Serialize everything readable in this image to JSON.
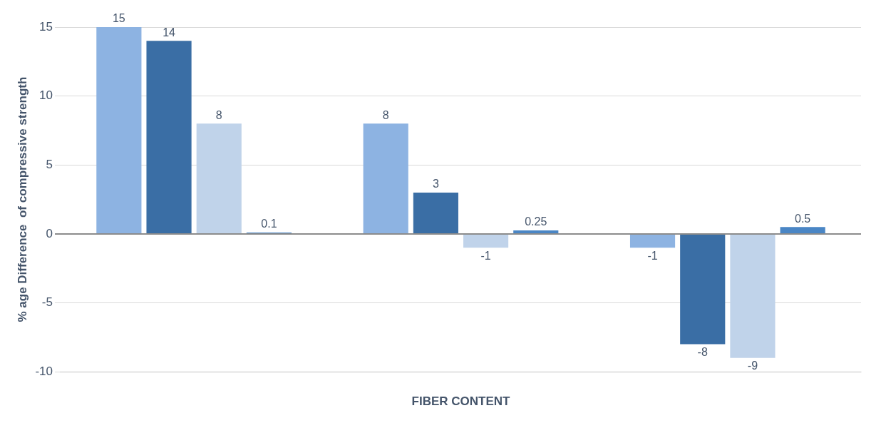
{
  "chart_data": {
    "type": "bar",
    "xlabel": "FIBER CONTENT",
    "ylabel": "% age Difference  of compressive strength",
    "categories": [
      null,
      null,
      null
    ],
    "series": [
      {
        "color": "#8db3e2",
        "values": [
          15,
          8,
          -1
        ]
      },
      {
        "color": "#3a6ea5",
        "values": [
          14,
          3,
          -8
        ]
      },
      {
        "color": "#c0d3ea",
        "values": [
          8,
          -1,
          -9
        ]
      },
      {
        "color": "#4a86c5",
        "values": [
          0.1,
          0.25,
          0.5
        ]
      }
    ],
    "ylim": [
      -10,
      15
    ],
    "yticks": [
      -10,
      -5,
      0,
      5,
      10,
      15
    ],
    "grid": "y",
    "data_labels": true,
    "legend": false
  }
}
